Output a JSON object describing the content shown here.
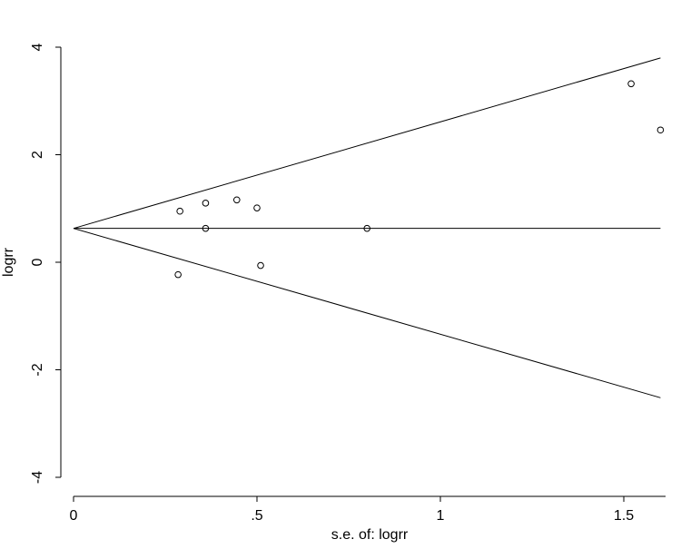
{
  "chart_data": {
    "type": "scatter",
    "title": "",
    "xlabel": "s.e. of: logrr",
    "ylabel": "logrr",
    "xlim": [
      0,
      1.6
    ],
    "ylim": [
      -4,
      4
    ],
    "x_ticks": [
      {
        "value": 0,
        "label": "0"
      },
      {
        "value": 0.5,
        "label": ".5"
      },
      {
        "value": 1,
        "label": "1"
      },
      {
        "value": 1.5,
        "label": "1.5"
      }
    ],
    "y_ticks": [
      {
        "value": 4,
        "label": "4"
      },
      {
        "value": 2,
        "label": "2"
      },
      {
        "value": 0,
        "label": "0"
      },
      {
        "value": -2,
        "label": "-2"
      },
      {
        "value": -4,
        "label": "-4"
      }
    ],
    "grid": false,
    "points": [
      {
        "x": 0.29,
        "y": 0.95
      },
      {
        "x": 0.36,
        "y": 1.1
      },
      {
        "x": 0.36,
        "y": 0.63
      },
      {
        "x": 0.445,
        "y": 1.16
      },
      {
        "x": 0.5,
        "y": 1.01
      },
      {
        "x": 0.285,
        "y": -0.23
      },
      {
        "x": 0.51,
        "y": -0.06
      },
      {
        "x": 0.8,
        "y": 0.63
      },
      {
        "x": 1.52,
        "y": 3.32
      },
      {
        "x": 1.6,
        "y": 2.46
      }
    ],
    "reference_lines": [
      {
        "name": "pooled-estimate",
        "x1": 0,
        "y1": 0.63,
        "x2": 1.6,
        "y2": 0.63
      },
      {
        "name": "upper-pseudo-ci",
        "x1": 0,
        "y1": 0.63,
        "x2": 1.6,
        "y2": 3.8
      },
      {
        "name": "lower-pseudo-ci",
        "x1": 0,
        "y1": 0.63,
        "x2": 1.6,
        "y2": -2.52
      }
    ],
    "colors": {
      "line": "#000000",
      "marker": "#000000",
      "background": "#ffffff"
    }
  }
}
